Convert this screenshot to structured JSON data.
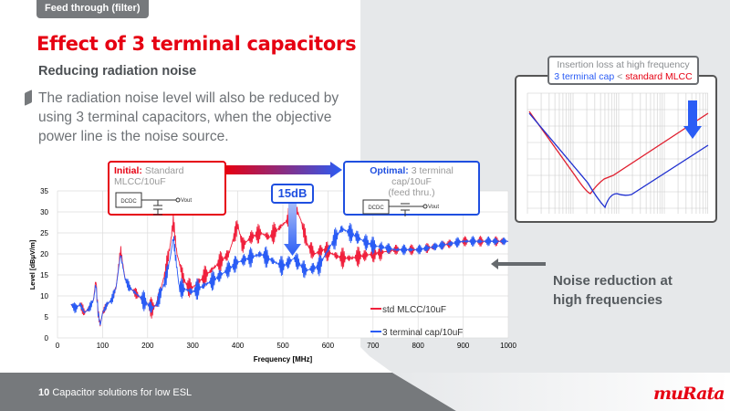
{
  "header": {
    "section_tag": "Feed through (filter)",
    "title": "Effect of 3 terminal capacitors",
    "subtitle": "Reducing radiation noise",
    "body": "The radiation noise level will also be reduced by using 3 terminal capacitors, when the objective power line is the noise source."
  },
  "initial_box": {
    "label": "Initial:",
    "text": "Standard MLCC/10uF",
    "block": "DCDC",
    "out": "Vout"
  },
  "optimal_box": {
    "label": "Optimal:",
    "text": "3 terminal cap/10uF",
    "note": "(feed thru.)",
    "block": "DCDC",
    "out": "Vout"
  },
  "reduction_badge": "15dB",
  "inset": {
    "callout_line1": "Insertion loss at high frequency",
    "callout_blue": "3 terminal cap",
    "callout_sep": " < ",
    "callout_red": "standard MLCC"
  },
  "noise_caption": "Noise reduction at high frequencies",
  "footer": {
    "page": "10",
    "text": "Capacitor solutions for low ESL",
    "logo": "muRata"
  },
  "colors": {
    "brand_red": "#e60012",
    "blue": "#1f4fe0",
    "std_series": "#f0203c",
    "three_term_series": "#2a5cf5"
  },
  "chart_data": {
    "type": "line",
    "xlabel": "Frequency [MHz]",
    "ylabel": "Level [dBμV/m]",
    "xlim": [
      0,
      1000
    ],
    "ylim": [
      0,
      35
    ],
    "xticks": [
      0,
      100,
      200,
      300,
      400,
      500,
      600,
      700,
      800,
      900,
      1000
    ],
    "yticks": [
      0,
      5,
      10,
      15,
      20,
      25,
      30,
      35
    ],
    "grid": true,
    "legend": "bottom-right",
    "series": [
      {
        "name": "std MLCC/10uF",
        "color": "#f0203c",
        "x": [
          30,
          40,
          50,
          60,
          70,
          80,
          85,
          90,
          95,
          100,
          110,
          120,
          130,
          140,
          150,
          160,
          170,
          180,
          190,
          200,
          210,
          220,
          230,
          240,
          250,
          257,
          265,
          280,
          290,
          300,
          320,
          340,
          360,
          380,
          400,
          410,
          430,
          450,
          470,
          490,
          510,
          525,
          540,
          555,
          570,
          590,
          610,
          630,
          650,
          700,
          750,
          800,
          850,
          900,
          950,
          1000
        ],
        "y": [
          8,
          7,
          8,
          6,
          7,
          9,
          14,
          6,
          3,
          6,
          8,
          9,
          12,
          21,
          14,
          12,
          11,
          10,
          9,
          8,
          7,
          8,
          12,
          16,
          22,
          28,
          20,
          14,
          12,
          12,
          14,
          16,
          18,
          20,
          27,
          22,
          24,
          25,
          24,
          26,
          28,
          32,
          28,
          22,
          20,
          21,
          20,
          19,
          19,
          20,
          21,
          21,
          22,
          23,
          23,
          23
        ]
      },
      {
        "name": "3 terminal cap/10uF",
        "color": "#2a5cf5",
        "x": [
          30,
          40,
          50,
          60,
          70,
          80,
          85,
          90,
          95,
          100,
          110,
          120,
          130,
          140,
          150,
          160,
          170,
          180,
          190,
          200,
          210,
          220,
          230,
          240,
          250,
          257,
          270,
          300,
          350,
          400,
          450,
          500,
          525,
          550,
          580,
          600,
          630,
          650,
          680,
          700,
          750,
          800,
          850,
          900,
          950,
          1000
        ],
        "y": [
          8,
          7,
          8,
          6,
          7,
          9,
          13,
          6,
          3,
          6,
          8,
          9,
          12,
          20,
          14,
          12,
          11,
          10,
          9,
          8,
          7,
          8,
          11,
          14,
          19,
          24,
          12,
          11,
          14,
          18,
          20,
          17,
          19,
          16,
          17,
          21,
          26,
          25,
          23,
          22,
          21,
          21,
          22,
          23,
          23,
          23
        ]
      }
    ]
  }
}
